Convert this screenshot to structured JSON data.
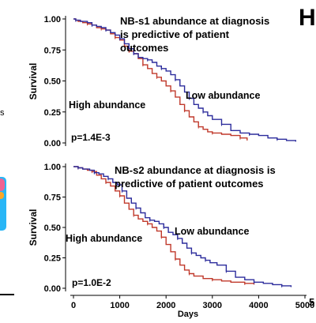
{
  "edge": {
    "panel_letter": "H",
    "left_fragment": "s",
    "right_fragment": "5"
  },
  "chart_data": [
    {
      "type": "line",
      "title": "NB-s1 abundance at diagnosis is predictive of patient outcomes",
      "ylabel": "Survival",
      "xlabel": "",
      "xlim": [
        0,
        5000
      ],
      "ylim": [
        0,
        1
      ],
      "yticks": [
        "0.00",
        "0.25",
        "0.50",
        "0.75",
        "1.00"
      ],
      "grid": false,
      "pvalue": "p=1.4E-3",
      "series": [
        {
          "name": "High abundance",
          "color": "#c0392b",
          "points": [
            [
              0,
              1.0
            ],
            [
              50,
              0.99
            ],
            [
              100,
              0.98
            ],
            [
              200,
              0.97
            ],
            [
              300,
              0.96
            ],
            [
              400,
              0.95
            ],
            [
              500,
              0.93
            ],
            [
              600,
              0.92
            ],
            [
              700,
              0.91
            ],
            [
              800,
              0.88
            ],
            [
              900,
              0.85
            ],
            [
              1000,
              0.83
            ],
            [
              1100,
              0.78
            ],
            [
              1200,
              0.74
            ],
            [
              1300,
              0.72
            ],
            [
              1400,
              0.68
            ],
            [
              1500,
              0.63
            ],
            [
              1600,
              0.6
            ],
            [
              1700,
              0.56
            ],
            [
              1800,
              0.53
            ],
            [
              1900,
              0.5
            ],
            [
              2000,
              0.46
            ],
            [
              2100,
              0.42
            ],
            [
              2200,
              0.37
            ],
            [
              2300,
              0.31
            ],
            [
              2400,
              0.26
            ],
            [
              2500,
              0.21
            ],
            [
              2600,
              0.17
            ],
            [
              2700,
              0.13
            ],
            [
              2800,
              0.11
            ],
            [
              2900,
              0.09
            ],
            [
              3000,
              0.08
            ],
            [
              3200,
              0.07
            ],
            [
              3400,
              0.06
            ],
            [
              3600,
              0.04
            ],
            [
              3750,
              0.02
            ]
          ]
        },
        {
          "name": "Low abundance",
          "color": "#2c2c9c",
          "points": [
            [
              0,
              1.0
            ],
            [
              50,
              0.99
            ],
            [
              150,
              0.98
            ],
            [
              300,
              0.97
            ],
            [
              400,
              0.95
            ],
            [
              500,
              0.94
            ],
            [
              600,
              0.93
            ],
            [
              700,
              0.91
            ],
            [
              800,
              0.89
            ],
            [
              900,
              0.87
            ],
            [
              1000,
              0.84
            ],
            [
              1100,
              0.8
            ],
            [
              1200,
              0.76
            ],
            [
              1300,
              0.72
            ],
            [
              1400,
              0.69
            ],
            [
              1500,
              0.68
            ],
            [
              1600,
              0.67
            ],
            [
              1700,
              0.65
            ],
            [
              1800,
              0.62
            ],
            [
              1900,
              0.6
            ],
            [
              2000,
              0.58
            ],
            [
              2100,
              0.55
            ],
            [
              2200,
              0.51
            ],
            [
              2300,
              0.46
            ],
            [
              2400,
              0.41
            ],
            [
              2500,
              0.36
            ],
            [
              2600,
              0.31
            ],
            [
              2700,
              0.28
            ],
            [
              2800,
              0.25
            ],
            [
              2900,
              0.22
            ],
            [
              3000,
              0.19
            ],
            [
              3200,
              0.15
            ],
            [
              3400,
              0.1
            ],
            [
              3600,
              0.08
            ],
            [
              3800,
              0.07
            ],
            [
              4000,
              0.06
            ],
            [
              4200,
              0.04
            ],
            [
              4400,
              0.03
            ],
            [
              4600,
              0.02
            ],
            [
              4800,
              0.01
            ]
          ]
        }
      ],
      "annotations": [
        {
          "text": "High abundance",
          "series": "High abundance"
        },
        {
          "text": "Low abundance",
          "series": "Low abundance"
        }
      ]
    },
    {
      "type": "line",
      "title": "NB-s2 abundance at diagnosis is predictive of patient outcomes",
      "ylabel": "Survival",
      "xlabel": "Days",
      "xlim": [
        0,
        5000
      ],
      "ylim": [
        0,
        1
      ],
      "xticks": [
        "0",
        "1000",
        "2000",
        "3000",
        "4000",
        "5000"
      ],
      "yticks": [
        "0.00",
        "0.25",
        "0.50",
        "0.75",
        "1.00"
      ],
      "grid": false,
      "pvalue": "p=1.0E-2",
      "series": [
        {
          "name": "High abundance",
          "color": "#c0392b",
          "points": [
            [
              0,
              1.0
            ],
            [
              100,
              0.99
            ],
            [
              200,
              0.98
            ],
            [
              300,
              0.97
            ],
            [
              400,
              0.96
            ],
            [
              500,
              0.93
            ],
            [
              600,
              0.9
            ],
            [
              700,
              0.87
            ],
            [
              800,
              0.84
            ],
            [
              900,
              0.8
            ],
            [
              1000,
              0.76
            ],
            [
              1100,
              0.7
            ],
            [
              1200,
              0.65
            ],
            [
              1300,
              0.6
            ],
            [
              1400,
              0.57
            ],
            [
              1500,
              0.55
            ],
            [
              1600,
              0.53
            ],
            [
              1700,
              0.5
            ],
            [
              1800,
              0.47
            ],
            [
              1900,
              0.42
            ],
            [
              2000,
              0.36
            ],
            [
              2100,
              0.3
            ],
            [
              2200,
              0.24
            ],
            [
              2300,
              0.19
            ],
            [
              2400,
              0.15
            ],
            [
              2500,
              0.12
            ],
            [
              2600,
              0.1
            ],
            [
              2800,
              0.08
            ],
            [
              3000,
              0.07
            ],
            [
              3200,
              0.06
            ],
            [
              3400,
              0.05
            ],
            [
              3700,
              0.04
            ],
            [
              3900,
              0.03
            ]
          ]
        },
        {
          "name": "Low abundance",
          "color": "#2c2c9c",
          "points": [
            [
              0,
              1.0
            ],
            [
              100,
              0.99
            ],
            [
              200,
              0.98
            ],
            [
              350,
              0.97
            ],
            [
              450,
              0.95
            ],
            [
              550,
              0.94
            ],
            [
              650,
              0.92
            ],
            [
              750,
              0.9
            ],
            [
              850,
              0.87
            ],
            [
              950,
              0.85
            ],
            [
              1050,
              0.8
            ],
            [
              1150,
              0.74
            ],
            [
              1250,
              0.7
            ],
            [
              1350,
              0.66
            ],
            [
              1450,
              0.62
            ],
            [
              1550,
              0.58
            ],
            [
              1650,
              0.56
            ],
            [
              1750,
              0.55
            ],
            [
              1850,
              0.53
            ],
            [
              1950,
              0.5
            ],
            [
              2050,
              0.46
            ],
            [
              2150,
              0.44
            ],
            [
              2250,
              0.41
            ],
            [
              2350,
              0.37
            ],
            [
              2450,
              0.33
            ],
            [
              2550,
              0.29
            ],
            [
              2650,
              0.27
            ],
            [
              2750,
              0.25
            ],
            [
              2850,
              0.23
            ],
            [
              2950,
              0.21
            ],
            [
              3100,
              0.19
            ],
            [
              3300,
              0.14
            ],
            [
              3500,
              0.09
            ],
            [
              3700,
              0.07
            ],
            [
              3900,
              0.05
            ],
            [
              4100,
              0.04
            ],
            [
              4300,
              0.03
            ],
            [
              4500,
              0.02
            ],
            [
              4700,
              0.01
            ]
          ]
        }
      ],
      "annotations": [
        {
          "text": "High abundance",
          "series": "High abundance"
        },
        {
          "text": "Low abundance",
          "series": "Low abundance"
        }
      ]
    }
  ]
}
